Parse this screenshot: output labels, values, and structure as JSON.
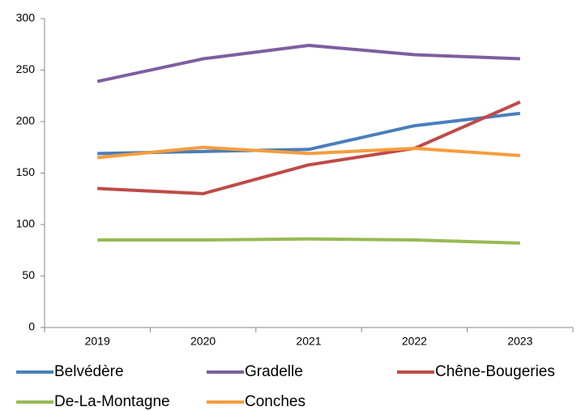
{
  "chart_data": {
    "type": "line",
    "categories": [
      "2019",
      "2020",
      "2021",
      "2022",
      "2023"
    ],
    "series": [
      {
        "name": "Belvédère",
        "color": "#4a7ebb",
        "values": [
          169,
          171,
          173,
          196,
          208
        ]
      },
      {
        "name": "Gradelle",
        "color": "#7d5fa0",
        "values": [
          239,
          261,
          274,
          265,
          261
        ]
      },
      {
        "name": "Chêne-Bougeries",
        "color": "#be4b48",
        "values": [
          135,
          130,
          158,
          174,
          219
        ]
      },
      {
        "name": "De-La-Montagne",
        "color": "#98b954",
        "values": [
          85,
          85,
          86,
          85,
          82
        ]
      },
      {
        "name": "Conches",
        "color": "#f59d3d",
        "values": [
          165,
          175,
          169,
          174,
          167
        ]
      }
    ],
    "ylim": [
      0,
      300
    ],
    "yticks": [
      0,
      50,
      100,
      150,
      200,
      250,
      300
    ],
    "grid": false
  }
}
